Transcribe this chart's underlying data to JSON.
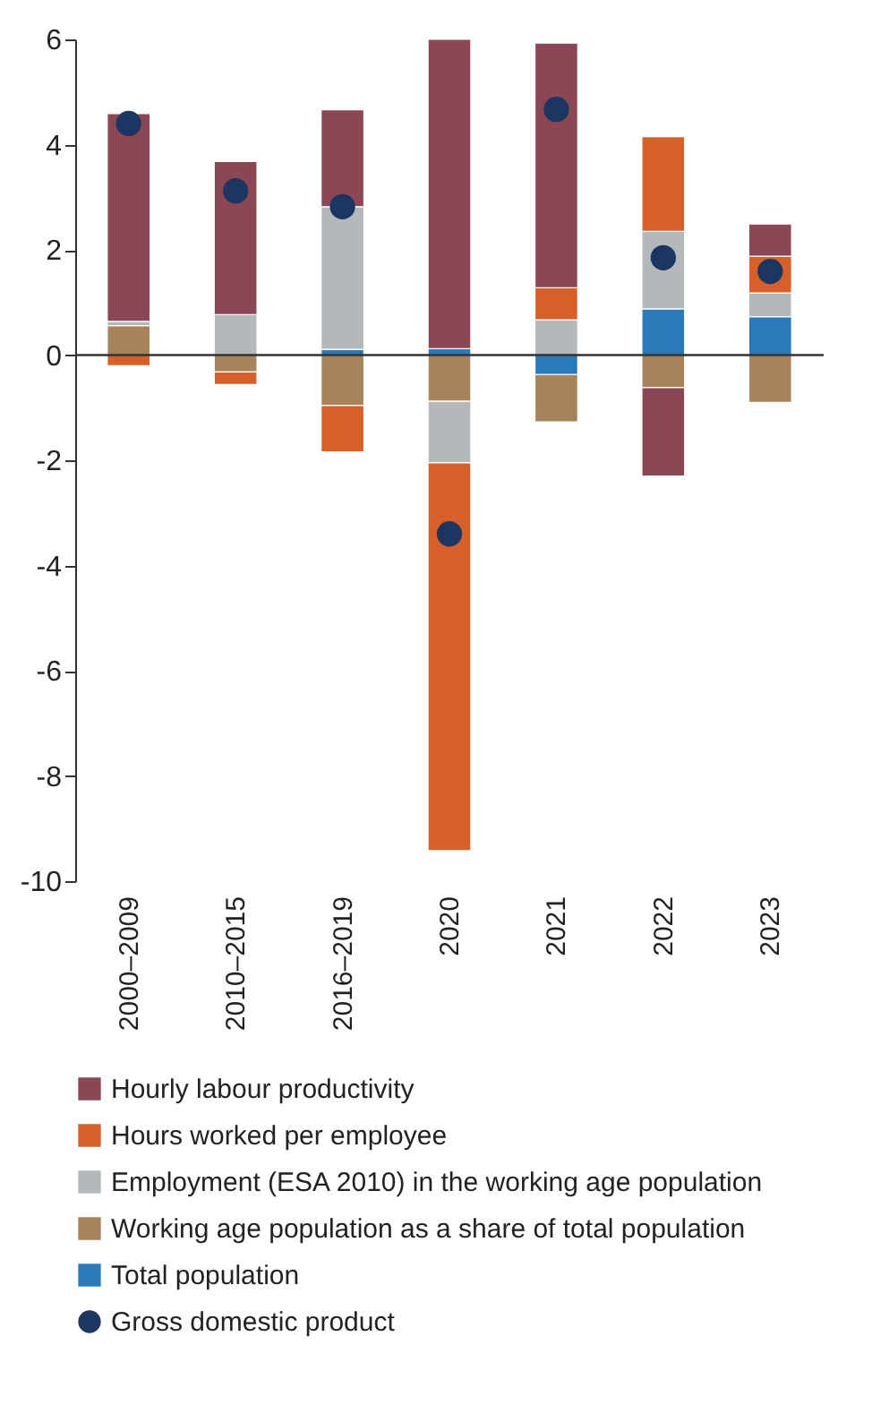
{
  "chart_data": {
    "type": "bar",
    "stacked": true,
    "categories": [
      "2000–2009",
      "2010–2015",
      "2016–2019",
      "2020",
      "2021",
      "2022",
      "2023"
    ],
    "series": [
      {
        "name": "Total population",
        "color": "#2a7aba",
        "values": [
          0,
          0,
          0.11,
          0.12,
          -0.37,
          0.88,
          0.73
        ]
      },
      {
        "name": "Working age population as a share of total population",
        "color": "#a6835a",
        "values": [
          0.56,
          -0.32,
          -0.96,
          -0.88,
          -0.9,
          -0.62,
          -0.9
        ]
      },
      {
        "name": "Employment (ESA 2010) in the working age population",
        "color": "#b3b8bb",
        "values": [
          0.08,
          0.77,
          2.71,
          -1.17,
          0.67,
          1.47,
          0.45
        ]
      },
      {
        "name": "Hours worked per employee",
        "color": "#d66029",
        "values": [
          -0.2,
          -0.24,
          -0.88,
          -7.37,
          0.61,
          1.8,
          0.7
        ]
      },
      {
        "name": "Hourly labour productivity",
        "color": "#8b4756",
        "values": [
          3.95,
          2.91,
          1.84,
          5.88,
          4.65,
          -1.68,
          0.61
        ]
      },
      {
        "name": "Gross domestic product",
        "type": "scatter",
        "color": "#1c3561",
        "values": [
          4.4,
          3.12,
          2.82,
          -3.4,
          4.67,
          1.85,
          1.59
        ]
      }
    ],
    "ylim": [
      -10,
      6
    ],
    "yticks": [
      -10,
      -8,
      -6,
      -4,
      -2,
      0,
      2,
      4,
      6
    ],
    "marker": "circle",
    "legend": "bottom",
    "ref_lines": [
      {
        "axis": "y",
        "value": 0
      }
    ]
  }
}
